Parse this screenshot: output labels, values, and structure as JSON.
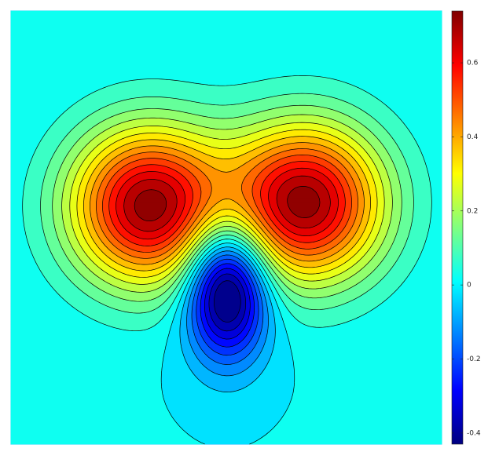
{
  "chart_data": {
    "type": "contour",
    "levels": [
      -0.4,
      -0.35,
      -0.3,
      -0.25,
      -0.2,
      -0.15,
      -0.1,
      -0.05,
      0,
      0.05,
      0.1,
      0.15,
      0.2,
      0.25,
      0.3,
      0.35,
      0.4,
      0.45,
      0.5,
      0.55,
      0.6,
      0.65,
      0.7
    ],
    "colormap": "jet",
    "clim": [
      -0.43,
      0.74
    ],
    "cticks": [
      -0.4,
      -0.2,
      0,
      0.2,
      0.4,
      0.6
    ],
    "line_color": "#000000"
  }
}
